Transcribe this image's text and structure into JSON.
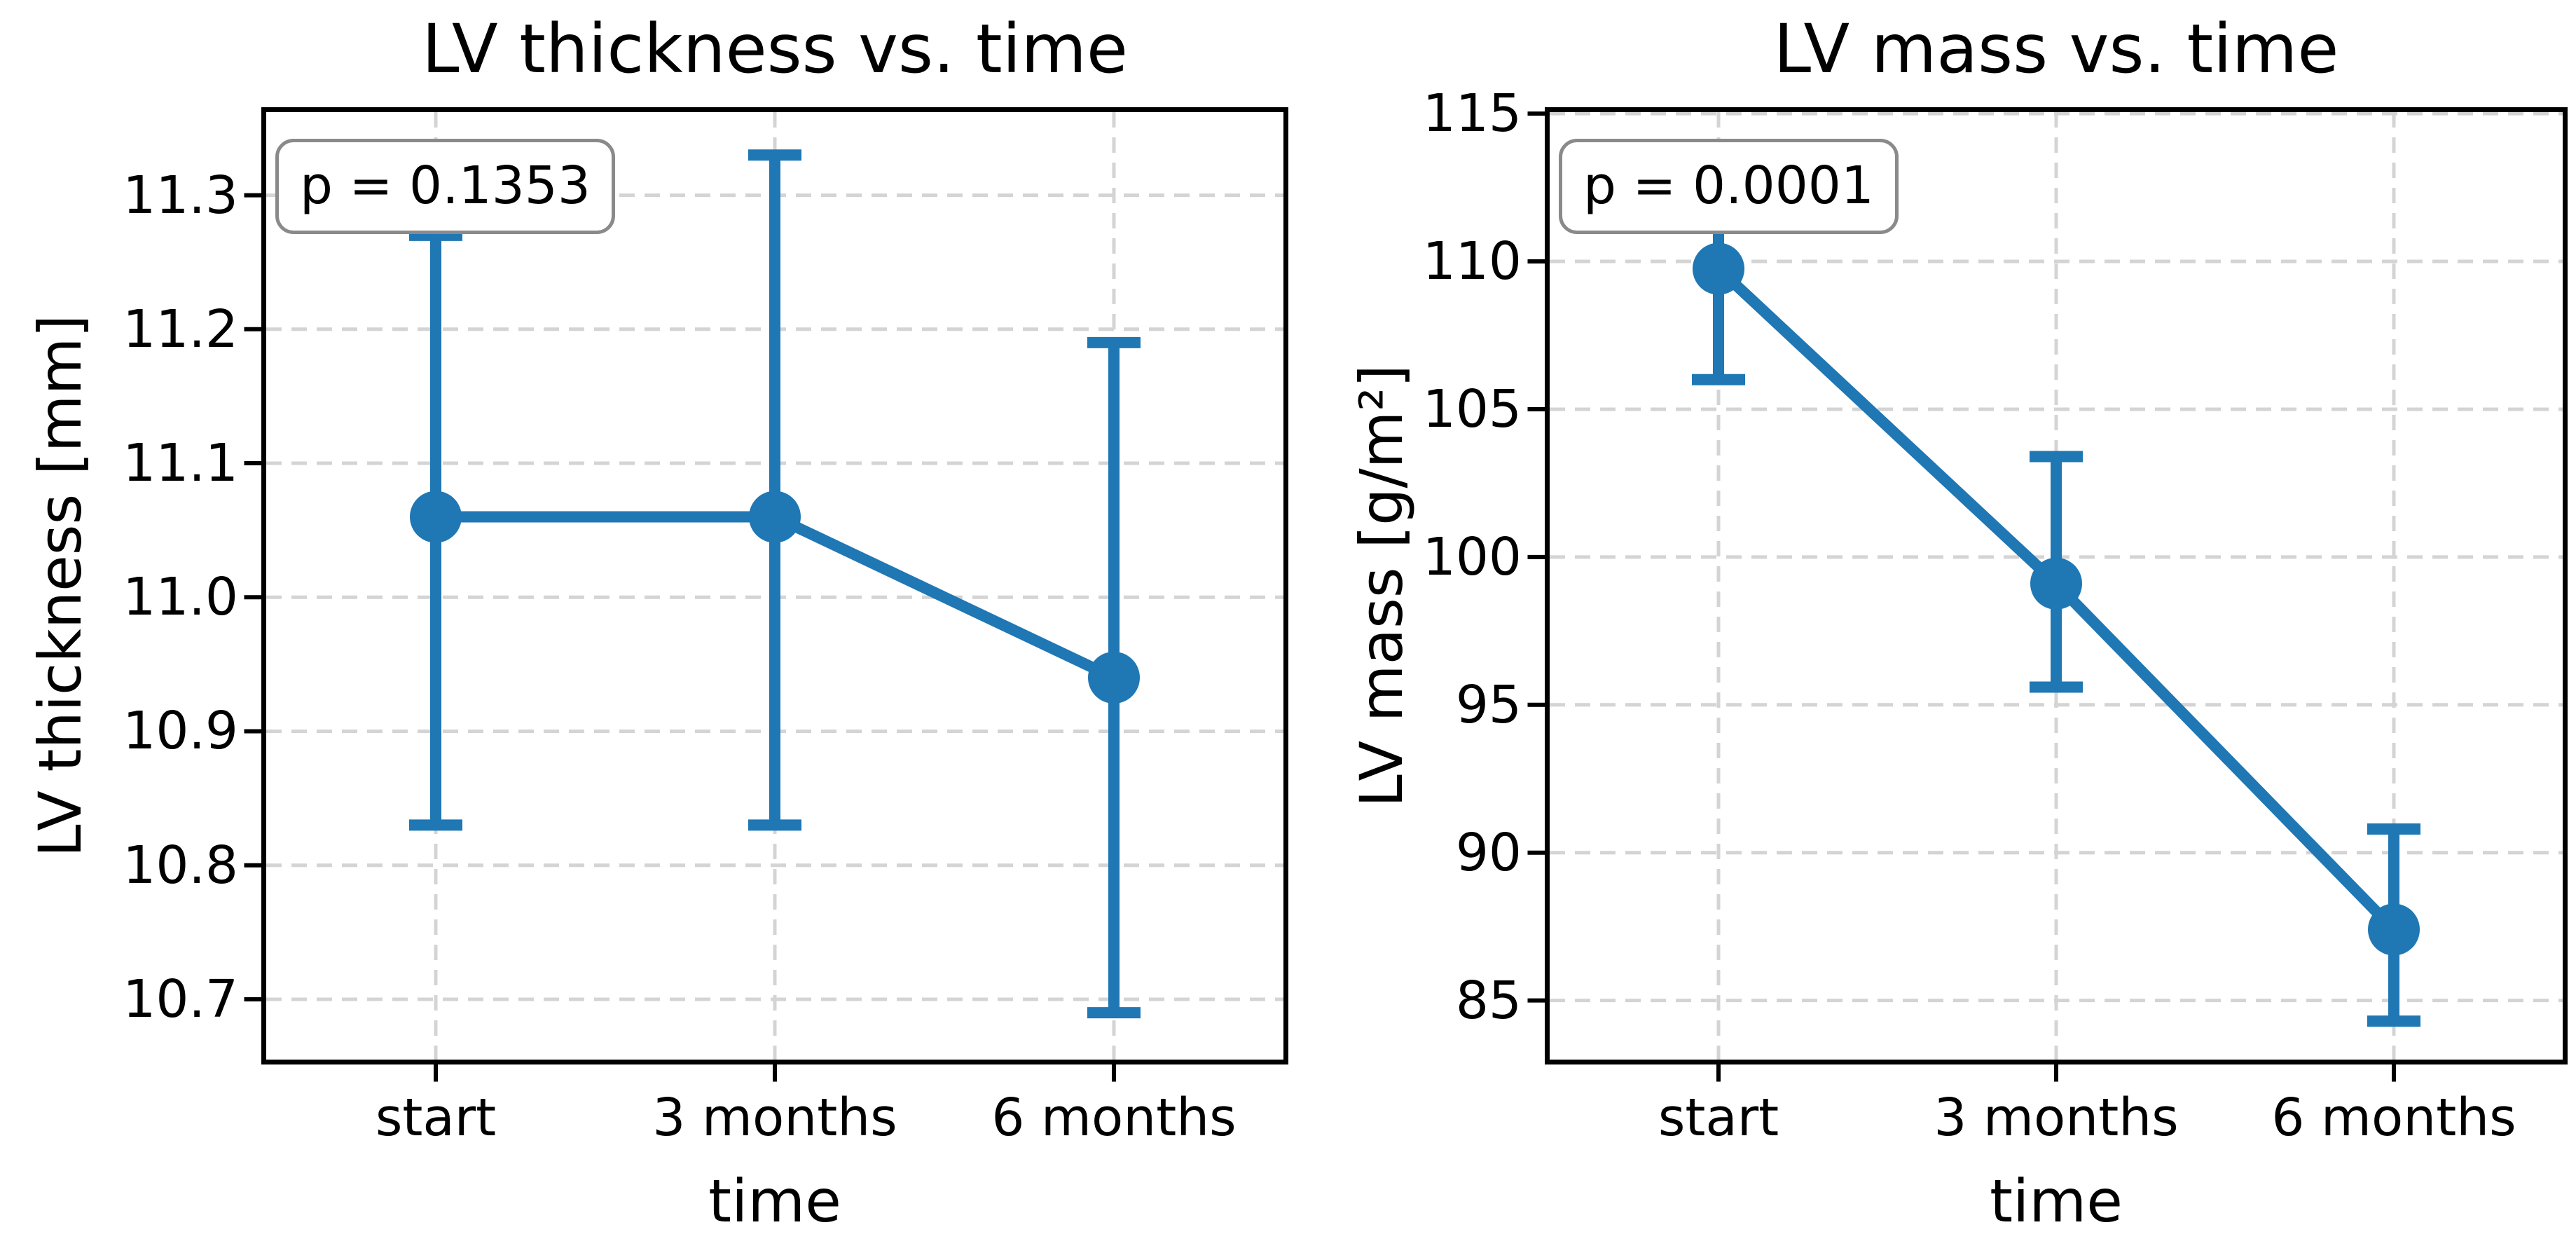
{
  "figure": {
    "background": "#ffffff",
    "series_color": "#1f77b4",
    "grid_color": "#d4d4d4",
    "spine_color": "#000000",
    "annotation_border_color": "#8a8a8a"
  },
  "chart_data": [
    {
      "type": "line",
      "title": "LV thickness vs. time",
      "xlabel": "time",
      "ylabel": "LV thickness [mm]",
      "categories": [
        "start",
        "3 months",
        "6 months"
      ],
      "values": [
        11.06,
        11.06,
        10.94
      ],
      "err_lower": [
        10.83,
        10.83,
        10.69
      ],
      "err_upper": [
        11.27,
        11.33,
        11.19
      ],
      "annotation": "p = 0.1353",
      "ylim": [
        10.655,
        11.362
      ],
      "yticks": [
        10.7,
        10.8,
        10.9,
        11.0,
        11.1,
        11.2,
        11.3
      ],
      "ytick_labels": [
        "10.7",
        "10.8",
        "10.9",
        "11.0",
        "11.1",
        "11.2",
        "11.3"
      ],
      "grid": true,
      "legend": "none",
      "line_color": "#1f77b4"
    },
    {
      "type": "line",
      "title": "LV mass vs. time",
      "xlabel": "time",
      "ylabel": "LV mass [g/m²]",
      "categories": [
        "start",
        "3 months",
        "6 months"
      ],
      "values": [
        109.75,
        99.1,
        87.4
      ],
      "err_lower": [
        106.0,
        95.6,
        84.3
      ],
      "err_upper": [
        113.4,
        103.4,
        90.8
      ],
      "annotation": "p = 0.0001",
      "ylim": [
        83.0,
        115.05
      ],
      "yticks": [
        85,
        90,
        95,
        100,
        105,
        110,
        115
      ],
      "ytick_labels": [
        "85",
        "90",
        "95",
        "100",
        "105",
        "110",
        "115"
      ],
      "grid": true,
      "legend": "none",
      "line_color": "#1f77b4"
    }
  ]
}
